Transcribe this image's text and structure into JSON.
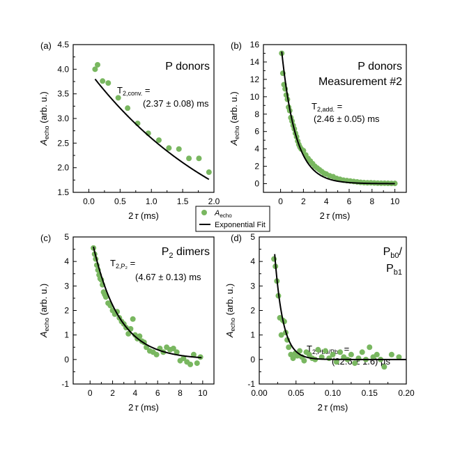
{
  "legend": {
    "items": [
      {
        "label": "A",
        "sub": "echo",
        "type": "marker",
        "color": "#79b760"
      },
      {
        "label": "Exponential Fit",
        "sub": "",
        "type": "line",
        "color": "#000000"
      }
    ]
  },
  "chart_data": [
    {
      "type": "scatter",
      "panel": "(a)",
      "title": "P donors",
      "title_lines": [
        {
          "main": "P donors",
          "sub": "",
          "after": ""
        }
      ],
      "annotation": {
        "main": "T",
        "sub": "2,conv.",
        "after": " =",
        "value": "(2.37 ± 0.08) ms"
      },
      "xlabel": "2τ (ms)",
      "ylabel": "Aecho (arb. u.)",
      "xlim": [
        -0.25,
        2.0
      ],
      "ylim": [
        1.5,
        4.5
      ],
      "xticks": [
        0.0,
        0.5,
        1.0,
        1.5,
        2.0
      ],
      "xticklabels": [
        "0.0",
        "0.5",
        "1.0",
        "1.5",
        "2.0"
      ],
      "yticks": [
        1.5,
        2.0,
        2.5,
        3.0,
        3.5,
        4.0,
        4.5
      ],
      "yticklabels": [
        "1.5",
        "2.0",
        "2.5",
        "3.0",
        "3.5",
        "4.0",
        "4.5"
      ],
      "x": [
        0.1,
        0.14,
        0.22,
        0.31,
        0.47,
        0.62,
        0.78,
        0.95,
        1.12,
        1.28,
        1.44,
        1.6,
        1.76,
        1.92
      ],
      "y": [
        4.0,
        4.09,
        3.76,
        3.72,
        3.42,
        3.21,
        2.9,
        2.7,
        2.56,
        2.4,
        2.38,
        2.19,
        2.19,
        1.91
      ],
      "fit": {
        "A": 3.8,
        "tau": 2.37,
        "C": 0.0,
        "x0": 0.1,
        "x1": 1.92
      },
      "grid": false
    },
    {
      "type": "scatter",
      "panel": "(b)",
      "title": "P donors Measurement #2",
      "title_lines": [
        {
          "main": "P donors",
          "sub": "",
          "after": ""
        },
        {
          "main": "Measurement #2",
          "sub": "",
          "after": ""
        }
      ],
      "annotation": {
        "main": "T",
        "sub": "2,add.",
        "after": " =",
        "value": "(2.46 ± 0.05) ms"
      },
      "xlabel": "2τ (ms)",
      "ylabel": "Aecho (arb. u.)",
      "xlim": [
        -1.5,
        11.0
      ],
      "ylim": [
        -1.0,
        16.0
      ],
      "xticks": [
        0,
        2,
        4,
        6,
        8,
        10
      ],
      "xticklabels": [
        "0",
        "2",
        "4",
        "6",
        "8",
        "10"
      ],
      "yticks": [
        0,
        2,
        4,
        6,
        8,
        10,
        12,
        14,
        16
      ],
      "yticklabels": [
        "0",
        "2",
        "4",
        "6",
        "8",
        "10",
        "12",
        "14",
        "16"
      ],
      "x": [
        0.1,
        0.2,
        0.3,
        0.4,
        0.5,
        0.6,
        0.7,
        0.8,
        0.9,
        1.0,
        1.1,
        1.2,
        1.3,
        1.4,
        1.5,
        1.6,
        1.7,
        1.8,
        2.0,
        2.2,
        2.4,
        2.6,
        2.8,
        3.0,
        3.2,
        3.4,
        3.6,
        3.8,
        4.0,
        4.3,
        4.6,
        4.9,
        5.2,
        5.5,
        5.8,
        6.1,
        6.4,
        6.7,
        7.0,
        7.3,
        7.6,
        7.9,
        8.2,
        8.5,
        8.8,
        9.1,
        9.4,
        9.7,
        10.0
      ],
      "y": [
        15.0,
        12.7,
        11.4,
        10.9,
        10.2,
        9.7,
        8.8,
        8.4,
        7.6,
        7.2,
        6.7,
        6.3,
        5.8,
        5.4,
        4.9,
        4.5,
        4.2,
        4.0,
        3.8,
        3.3,
        2.9,
        2.6,
        2.3,
        2.0,
        1.8,
        1.6,
        1.4,
        1.2,
        1.1,
        0.9,
        0.8,
        0.6,
        0.5,
        0.4,
        0.35,
        0.3,
        0.25,
        0.2,
        0.15,
        0.12,
        0.1,
        0.1,
        0.08,
        0.06,
        0.05,
        0.05,
        0.04,
        0.03,
        0.03
      ],
      "fit": {
        "A": 15.2,
        "tau": 1.23,
        "C": 0.0,
        "x0": 0.1,
        "x1": 10.0
      },
      "grid": false
    },
    {
      "type": "scatter",
      "panel": "(c)",
      "title": "P2 dimers",
      "title_lines": [
        {
          "main": "P",
          "sub": "2",
          "after": " dimers"
        }
      ],
      "annotation": {
        "main": "T",
        "sub": "2,P₂",
        "after": " =",
        "value": "(4.67 ± 0.13) ms"
      },
      "xlabel": "2τ (ms)",
      "ylabel": "Aecho (arb. u.)",
      "xlim": [
        -1.5,
        11.0
      ],
      "ylim": [
        -1.0,
        5.0
      ],
      "xticks": [
        0,
        2,
        4,
        6,
        8,
        10
      ],
      "xticklabels": [
        "0",
        "2",
        "4",
        "6",
        "8",
        "10"
      ],
      "yticks": [
        -1,
        0,
        1,
        2,
        3,
        4,
        5
      ],
      "yticklabels": [
        "-1",
        "0",
        "1",
        "2",
        "3",
        "4",
        "5"
      ],
      "x": [
        0.3,
        0.4,
        0.5,
        0.6,
        0.7,
        0.8,
        0.9,
        1.0,
        1.1,
        1.2,
        1.3,
        1.4,
        1.6,
        1.8,
        2.0,
        2.2,
        2.4,
        2.6,
        2.8,
        3.0,
        3.2,
        3.4,
        3.6,
        3.8,
        4.0,
        4.2,
        4.4,
        4.6,
        4.8,
        5.0,
        5.3,
        5.6,
        5.9,
        6.2,
        6.5,
        6.8,
        7.1,
        7.4,
        7.7,
        8.0,
        8.3,
        8.6,
        8.9,
        9.2,
        9.5,
        9.8
      ],
      "y": [
        4.55,
        4.3,
        4.1,
        3.85,
        3.65,
        3.45,
        3.3,
        3.25,
        3.05,
        2.75,
        2.65,
        2.55,
        2.3,
        2.2,
        2.0,
        1.85,
        1.95,
        1.7,
        1.55,
        1.45,
        1.3,
        1.05,
        1.25,
        1.65,
        1.0,
        0.85,
        0.95,
        0.75,
        0.7,
        0.5,
        0.35,
        0.3,
        0.2,
        0.45,
        0.3,
        0.5,
        0.4,
        0.45,
        0.3,
        -0.05,
        0.05,
        -0.1,
        -0.2,
        0.2,
        -0.15,
        0.1
      ],
      "fit": {
        "A": 4.6,
        "tau": 2.33,
        "C": 0.0,
        "x0": 0.3,
        "x1": 9.9
      },
      "grid": false
    },
    {
      "type": "scatter",
      "panel": "(d)",
      "title": "Pb0/Pb1",
      "title_lines": [
        {
          "main": "P",
          "sub": "b0",
          "after": "/"
        },
        {
          "main": "P",
          "sub": "b1",
          "after": ""
        }
      ],
      "annotation": {
        "main": "T",
        "sub": "2,Pb0/Pb1",
        "after": " =",
        "value": "(22.6 ± 1.6) µs"
      },
      "xlabel": "2τ (ms)",
      "ylabel": "Aecho (arb. u.)",
      "xlim": [
        0.0,
        0.2
      ],
      "ylim": [
        -1.0,
        5.0
      ],
      "xticks": [
        0.0,
        0.05,
        0.1,
        0.15,
        0.2
      ],
      "xticklabels": [
        "0.00",
        "0.05",
        "0.10",
        "0.15",
        "0.20"
      ],
      "yticks": [
        -1,
        0,
        1,
        2,
        3,
        4,
        5
      ],
      "yticklabels": [
        "-1",
        "0",
        "1",
        "2",
        "3",
        "4",
        "5"
      ],
      "x": [
        0.02,
        0.022,
        0.024,
        0.026,
        0.028,
        0.03,
        0.032,
        0.034,
        0.036,
        0.038,
        0.04,
        0.043,
        0.046,
        0.049,
        0.052,
        0.055,
        0.058,
        0.061,
        0.064,
        0.068,
        0.072,
        0.076,
        0.08,
        0.085,
        0.09,
        0.095,
        0.1,
        0.105,
        0.11,
        0.115,
        0.12,
        0.125,
        0.13,
        0.135,
        0.14,
        0.145,
        0.15,
        0.155,
        0.16,
        0.165,
        0.17,
        0.18,
        0.19
      ],
      "y": [
        4.1,
        3.8,
        3.2,
        2.6,
        1.7,
        1.0,
        1.6,
        1.55,
        1.1,
        0.8,
        0.5,
        0.2,
        0.05,
        0.25,
        0.15,
        0.35,
        0.1,
        -0.05,
        0.3,
        0.2,
        0.05,
        0.0,
        0.4,
        0.1,
        0.35,
        0.05,
        0.2,
        -0.1,
        0.3,
        0.1,
        0.0,
        0.2,
        -0.15,
        0.05,
        0.3,
        0.0,
        0.5,
        0.1,
        0.2,
        0.0,
        -0.3,
        0.2,
        0.1
      ],
      "fit": {
        "A": 4.3,
        "tau": 0.0113,
        "C": 0.0,
        "x0": 0.021,
        "x1": 0.2
      },
      "grid": false
    }
  ]
}
